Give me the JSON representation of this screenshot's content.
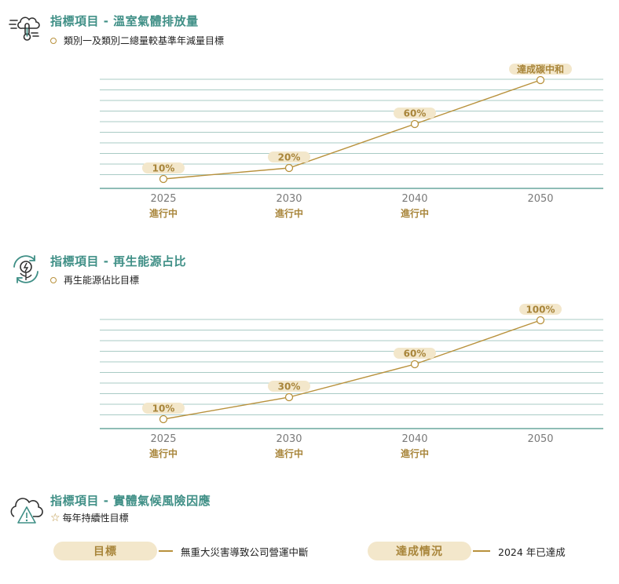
{
  "sections": [
    {
      "title": "指標項目 - 溫室氣體排放量",
      "subtitle": "類別一及類別二總量較基準年減量目標",
      "icon": "thermometer-cloud-icon"
    },
    {
      "title": "指標項目 - 再生能源占比",
      "subtitle": "再生能源佔比目標",
      "icon": "renewable-energy-icon"
    },
    {
      "title": "指標項目 - 實體氣候風險因應",
      "subtitle": "每年持續性目標",
      "icon": "cloud-warning-icon"
    }
  ],
  "chart_data": [
    {
      "type": "line",
      "x": [
        "2025",
        "2030",
        "2040",
        "2050"
      ],
      "values": [
        10,
        20,
        60,
        100
      ],
      "data_labels": [
        "10%",
        "20%",
        "60%",
        "達成碳中和"
      ],
      "status": [
        "進行中",
        "進行中",
        "進行中",
        ""
      ],
      "ylim": [
        0,
        100
      ],
      "grid": true,
      "colors": {
        "line": "#b8913c",
        "grid": "#a9cbc5",
        "axis": "#6aa79d",
        "label_bg": "#f3e7cb",
        "label_text": "#a8853a"
      }
    },
    {
      "type": "line",
      "x": [
        "2025",
        "2030",
        "2040",
        "2050"
      ],
      "values": [
        10,
        30,
        60,
        100
      ],
      "data_labels": [
        "10%",
        "30%",
        "60%",
        "100%"
      ],
      "status": [
        "進行中",
        "進行中",
        "進行中",
        ""
      ],
      "ylim": [
        0,
        100
      ],
      "grid": true,
      "colors": {
        "line": "#b8913c",
        "grid": "#a9cbc5",
        "axis": "#6aa79d",
        "label_bg": "#f3e7cb",
        "label_text": "#a8853a"
      }
    }
  ],
  "risk": {
    "goal_label": "目標",
    "goal_text": "無重大災害導致公司營運中斷",
    "status_label": "達成情況",
    "status_text": "2024 年已達成"
  }
}
